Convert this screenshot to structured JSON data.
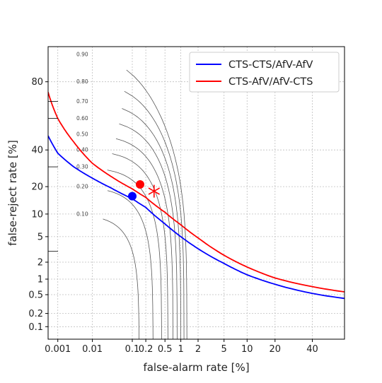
{
  "chart_data": {
    "type": "line",
    "title": "",
    "xlabel": "false-alarm rate [%]",
    "ylabel": "false-reject rate [%]",
    "x_scale": "probit",
    "y_scale": "probit",
    "xlim": [
      0.0005,
      60
    ],
    "ylim": [
      0.05,
      92
    ],
    "x_ticks": [
      0.001,
      0.01,
      0.1,
      0.2,
      0.5,
      1,
      2,
      5,
      10,
      20,
      40
    ],
    "x_tick_labels": [
      "0.001",
      "0.01",
      "0.1",
      "0.2",
      "0.5",
      "1",
      "2",
      "5",
      "10",
      "20",
      "40"
    ],
    "y_ticks": [
      0.1,
      0.2,
      0.5,
      1,
      2,
      5,
      10,
      20,
      40,
      80
    ],
    "y_tick_labels": [
      "0.1",
      "0.2",
      "0.5",
      "1",
      "2",
      "5",
      "10",
      "20",
      "40",
      "80"
    ],
    "grid": true,
    "legend_position": "top-right",
    "series": [
      {
        "name": "CTS-CTS/AfV-AfV",
        "color": "#0000ff",
        "x": [
          0.0005,
          0.001,
          0.003,
          0.01,
          0.03,
          0.1,
          0.2,
          0.5,
          1,
          2,
          5,
          10,
          20,
          40,
          60
        ],
        "y": [
          49,
          38,
          30,
          24,
          19.5,
          15,
          12,
          7.5,
          5,
          3.3,
          1.9,
          1.2,
          0.8,
          0.53,
          0.42
        ],
        "marker": {
          "type": "circle",
          "x": 0.1,
          "y": 16
        }
      },
      {
        "name": "CTS-AfV/AfV-CTS",
        "color": "#ff0000",
        "x": [
          0.0005,
          0.001,
          0.003,
          0.01,
          0.03,
          0.1,
          0.2,
          0.5,
          1,
          2,
          5,
          10,
          20,
          40,
          60
        ],
        "y": [
          75,
          60,
          45,
          32,
          25,
          19,
          15.5,
          10.5,
          7.3,
          4.8,
          2.6,
          1.65,
          1.05,
          0.72,
          0.57
        ],
        "markers": [
          {
            "type": "circle",
            "x": 0.15,
            "y": 21
          },
          {
            "type": "star",
            "x": 0.3,
            "y": 18
          }
        ]
      }
    ],
    "iso_detection_cost_curves": {
      "color": "#555555",
      "labels": [
        "0.10",
        "0.20",
        "0.30",
        "0.40",
        "0.50",
        "0.60",
        "0.70",
        "0.80",
        "0.90"
      ]
    }
  }
}
